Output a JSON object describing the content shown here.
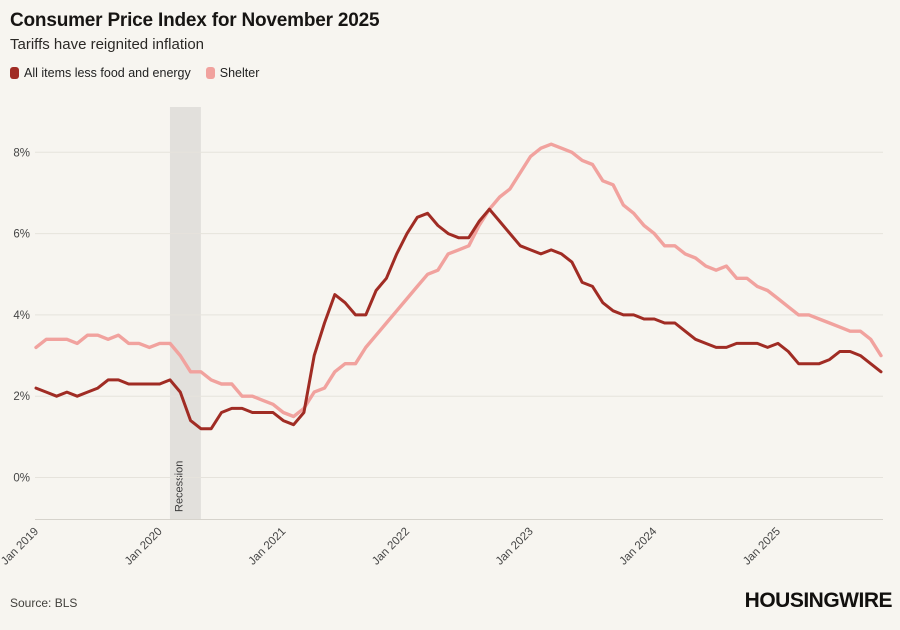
{
  "chart_data": {
    "type": "line",
    "title": "Consumer Price Index for November 2025",
    "subtitle": "Tariffs have reignited inflation",
    "source": "Source: BLS",
    "logo": "HOUSINGWIRE",
    "x_unit": "month",
    "x_start": "2019-01",
    "x_end": "2025-11",
    "x_tick_labels": [
      "Jan 2019",
      "Jan 2020",
      "Jan 2021",
      "Jan 2022",
      "Jan 2023",
      "Jan 2024",
      "Jan 2025"
    ],
    "y_ticks": [
      0,
      2,
      4,
      6,
      8
    ],
    "y_tick_suffix": "%",
    "ylim": [
      -1,
      9.1
    ],
    "grid": "horizontal",
    "legend_position": "top-left",
    "background_color": "#f7f5f0",
    "gridline_color": "#e6e3dc",
    "axis_label_color": "#454545",
    "recession_band": {
      "label": "Recession",
      "start": "2020-02",
      "end": "2020-05",
      "color": "#e2e0dc",
      "label_color": "#3c3c3c"
    },
    "series": [
      {
        "name": "All items less food and energy",
        "color": "#a02c24",
        "values": [
          2.2,
          2.1,
          2.0,
          2.1,
          2.0,
          2.1,
          2.2,
          2.4,
          2.4,
          2.3,
          2.3,
          2.3,
          2.3,
          2.4,
          2.1,
          1.4,
          1.2,
          1.2,
          1.6,
          1.7,
          1.7,
          1.6,
          1.6,
          1.6,
          1.4,
          1.3,
          1.6,
          3.0,
          3.8,
          4.5,
          4.3,
          4.0,
          4.0,
          4.6,
          4.9,
          5.5,
          6.0,
          6.4,
          6.5,
          6.2,
          6.0,
          5.9,
          5.9,
          6.3,
          6.6,
          6.3,
          6.0,
          5.7,
          5.6,
          5.5,
          5.6,
          5.5,
          5.3,
          4.8,
          4.7,
          4.3,
          4.1,
          4.0,
          4.0,
          3.9,
          3.9,
          3.8,
          3.8,
          3.6,
          3.4,
          3.3,
          3.2,
          3.2,
          3.3,
          3.3,
          3.3,
          3.2,
          3.3,
          3.1,
          2.8,
          2.8,
          2.8,
          2.9,
          3.1,
          3.1,
          3.0,
          2.8,
          2.6
        ]
      },
      {
        "name": "Shelter",
        "color": "#f1a29e",
        "values": [
          3.2,
          3.4,
          3.4,
          3.4,
          3.3,
          3.5,
          3.5,
          3.4,
          3.5,
          3.3,
          3.3,
          3.2,
          3.3,
          3.3,
          3.0,
          2.6,
          2.6,
          2.4,
          2.3,
          2.3,
          2.0,
          2.0,
          1.9,
          1.8,
          1.6,
          1.5,
          1.7,
          2.1,
          2.2,
          2.6,
          2.8,
          2.8,
          3.2,
          3.5,
          3.8,
          4.1,
          4.4,
          4.7,
          5.0,
          5.1,
          5.5,
          5.6,
          5.7,
          6.2,
          6.6,
          6.9,
          7.1,
          7.5,
          7.9,
          8.1,
          8.2,
          8.1,
          8.0,
          7.8,
          7.7,
          7.3,
          7.2,
          6.7,
          6.5,
          6.2,
          6.0,
          5.7,
          5.7,
          5.5,
          5.4,
          5.2,
          5.1,
          5.2,
          4.9,
          4.9,
          4.7,
          4.6,
          4.4,
          4.2,
          4.0,
          4.0,
          3.9,
          3.8,
          3.7,
          3.6,
          3.6,
          3.4,
          3.0
        ]
      }
    ]
  }
}
